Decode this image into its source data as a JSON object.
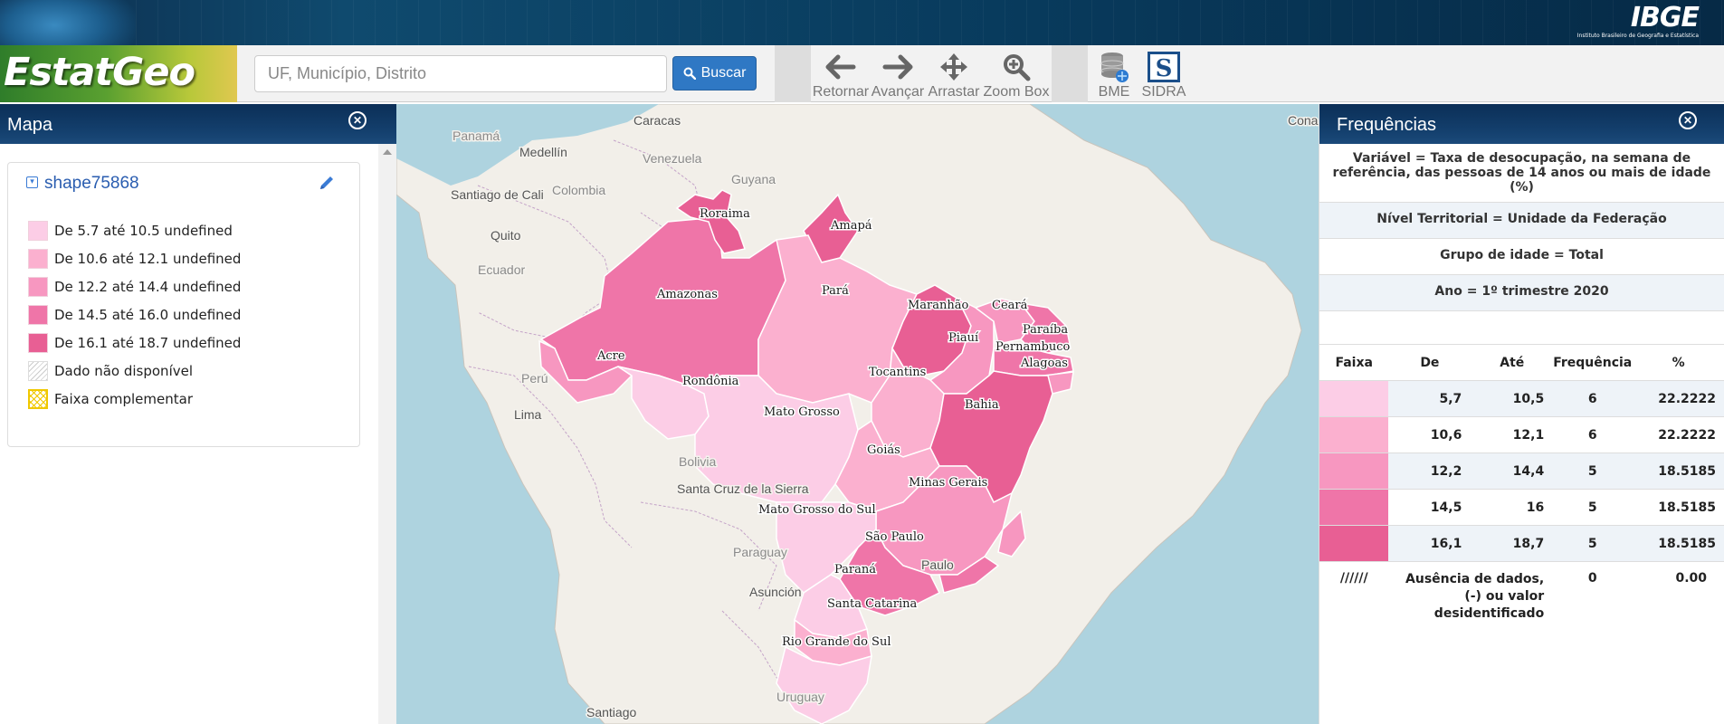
{
  "banner": {
    "brand": "IBGE",
    "brand_sub": "Instituto Brasileiro de Geografia e Estatística"
  },
  "toolbar": {
    "app_name": "EstatGeo",
    "search_placeholder": "UF, Município, Distrito",
    "search_label": "Buscar",
    "tools": {
      "back": "Retornar",
      "forward": "Avançar",
      "pan": "Arrastar",
      "zoom": "Zoom Box",
      "bme": "BME",
      "sidra": "SIDRA"
    }
  },
  "left_panel": {
    "title": "Mapa",
    "layer_name": "shape75868",
    "legend": [
      {
        "label": "De 5.7 até 10.5 undefined",
        "color": "#fccde6"
      },
      {
        "label": "De 10.6 até 12.1 undefined",
        "color": "#fbb0cf"
      },
      {
        "label": "De 12.2 até 14.4 undefined",
        "color": "#f797c0"
      },
      {
        "label": "De 14.5 até 16.0 undefined",
        "color": "#ef75a8"
      },
      {
        "label": "De 16.1 até 18.7 undefined",
        "color": "#e85f94"
      },
      {
        "label": "Dado não disponível",
        "color": "hatch-gray"
      },
      {
        "label": "Faixa complementar",
        "color": "hatch-yellow"
      }
    ]
  },
  "map": {
    "states": [
      "Roraima",
      "Amapá",
      "Amazonas",
      "Pará",
      "Maranhão",
      "Ceará",
      "Piauí",
      "Paraíba",
      "Pernambuco",
      "Alagoas",
      "Acre",
      "Rondônia",
      "Tocantins",
      "Bahia",
      "Mato Grosso",
      "Goiás",
      "Minas Gerais",
      "Mato Grosso do Sul",
      "São Paulo",
      "Paraná",
      "Santa Catarina",
      "Rio Grande do Sul"
    ],
    "cities": [
      "Caracas",
      "Medellín",
      "Santiago de Cali",
      "Quito",
      "Lima",
      "Santa Cruz de la Sierra",
      "Asunción",
      "Santiago",
      "Paulo",
      "Cona"
    ],
    "countries": [
      "Panamá",
      "Venezuela",
      "Colombia",
      "Guyana",
      "Ecuador",
      "Perú",
      "Bolivia",
      "Paraguay",
      "Uruguay"
    ]
  },
  "right_panel": {
    "title": "Frequências",
    "variable": "Variável = Taxa de desocupação, na semana de referência, das pessoas de 14 anos ou mais de idade (%)",
    "territorial_level": "Nível Territorial = Unidade da Federação",
    "age_group": "Grupo de idade = Total",
    "year": "Ano = 1º trimestre 2020",
    "table": {
      "headers": [
        "Faixa",
        "De",
        "Até",
        "Frequência",
        "%"
      ],
      "rows": [
        {
          "color": "#fccde6",
          "from": "5,7",
          "to": "10,5",
          "freq": "6",
          "pct": "22.2222"
        },
        {
          "color": "#fbb0cf",
          "from": "10,6",
          "to": "12,1",
          "freq": "6",
          "pct": "22.2222"
        },
        {
          "color": "#f797c0",
          "from": "12,2",
          "to": "14,4",
          "freq": "5",
          "pct": "18.5185"
        },
        {
          "color": "#ef75a8",
          "from": "14,5",
          "to": "16",
          "freq": "5",
          "pct": "18.5185"
        },
        {
          "color": "#e85f94",
          "from": "16,1",
          "to": "18,7",
          "freq": "5",
          "pct": "18.5185"
        }
      ],
      "missing": {
        "pattern": "//////",
        "label_1": "Ausência de dados,",
        "label_2": "(-) ou valor",
        "label_3": "desidentificado",
        "freq": "0",
        "pct": "0.00"
      }
    }
  }
}
